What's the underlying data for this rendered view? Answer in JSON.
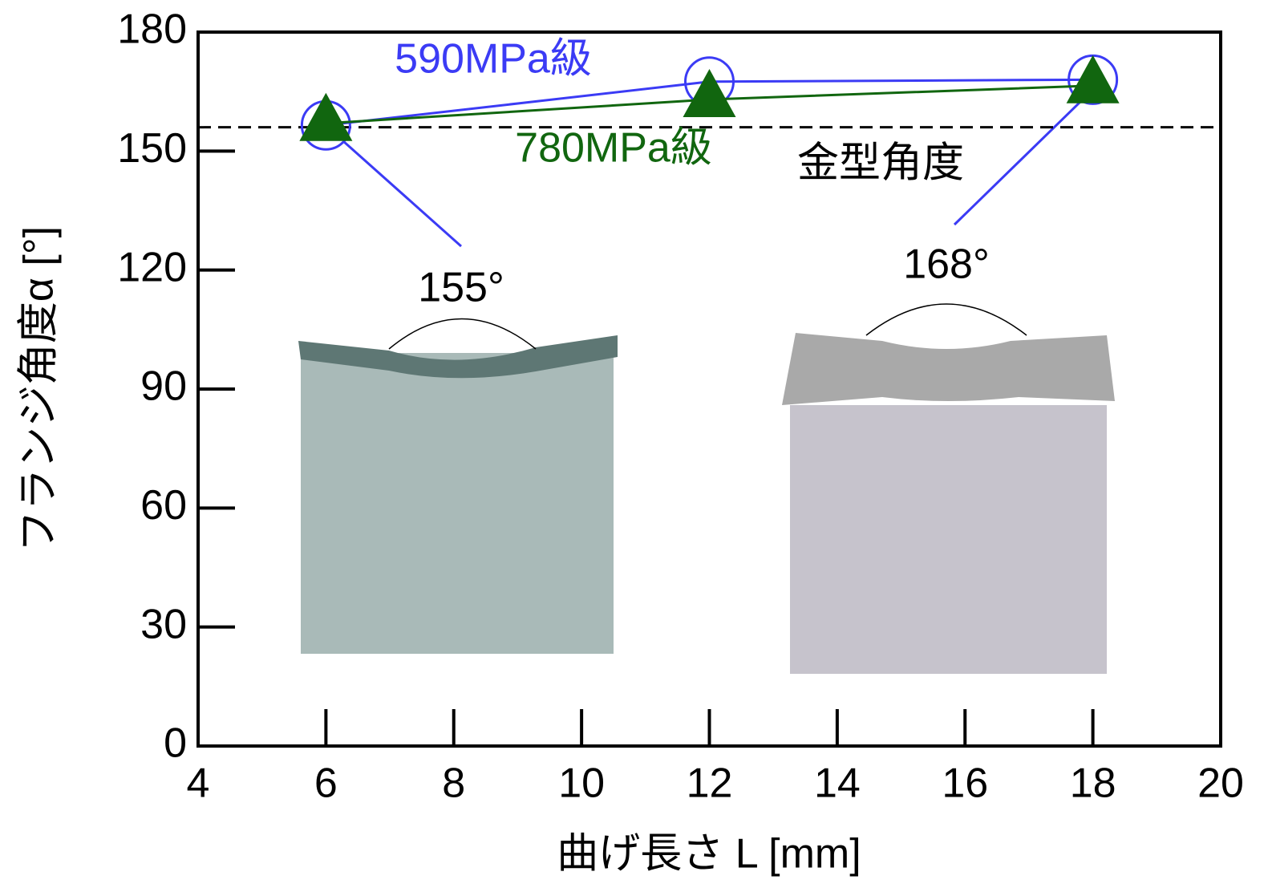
{
  "chart_data": {
    "type": "line",
    "xlabel": "曲げ長さ L [mm]",
    "ylabel": "フランジ角度α [°]",
    "x": [
      6,
      12,
      18
    ],
    "series": [
      {
        "name": "590MPa級",
        "color": "#3b3bf5",
        "marker": "circle",
        "values": [
          156.5,
          167.5,
          168
        ]
      },
      {
        "name": "780MPa級",
        "color": "#11660f",
        "marker": "triangle",
        "values": [
          157,
          163,
          166.5
        ]
      }
    ],
    "reference_line": {
      "value": 156,
      "label": "金型角度"
    },
    "annotations": [
      "155°",
      "168°"
    ],
    "xlim": [
      4,
      20
    ],
    "xticks": [
      4,
      6,
      8,
      10,
      12,
      14,
      16,
      18,
      20
    ],
    "ylim": [
      0,
      180
    ],
    "yticks": [
      0,
      30,
      60,
      90,
      120,
      150,
      180
    ]
  }
}
